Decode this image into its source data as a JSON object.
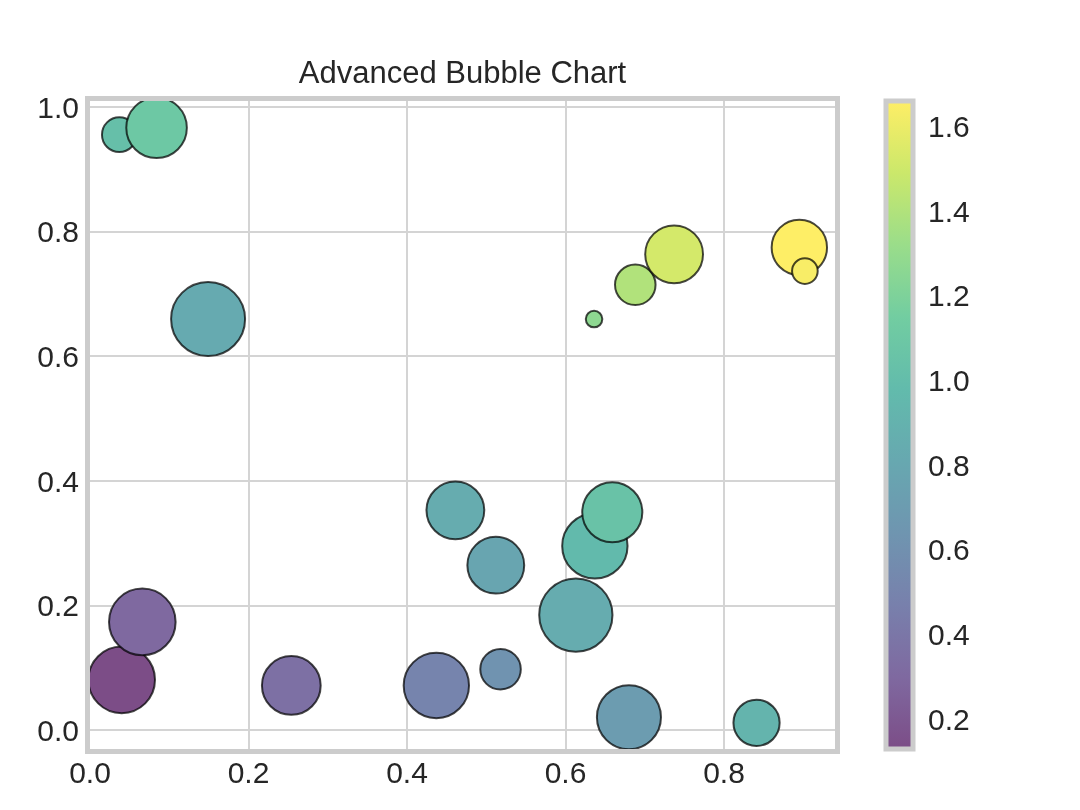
{
  "chart_data": {
    "type": "bubble",
    "title": "Advanced Bubble Chart",
    "x": [
      0.037,
      0.04,
      0.066,
      0.084,
      0.149,
      0.254,
      0.437,
      0.461,
      0.512,
      0.518,
      0.613,
      0.636,
      0.637,
      0.659,
      0.68,
      0.688,
      0.737,
      0.841,
      0.895,
      0.902
    ],
    "values": [
      0.956,
      0.081,
      0.174,
      0.967,
      0.66,
      0.072,
      0.072,
      0.353,
      0.265,
      0.098,
      0.185,
      0.66,
      0.296,
      0.35,
      0.021,
      0.715,
      0.764,
      0.012,
      0.775,
      0.737
    ],
    "sizes": [
      0.22,
      0.81,
      0.81,
      0.67,
      1,
      0.63,
      0.78,
      0.61,
      0.59,
      0.3,
      0.98,
      0.05,
      0.78,
      0.66,
      0.75,
      0.3,
      0.61,
      0.39,
      0.56,
      0.12
    ],
    "cvalues": [
      1.02,
      0.13,
      0.3,
      1.1,
      0.83,
      0.35,
      0.5,
      0.85,
      0.78,
      0.62,
      0.85,
      1.27,
      0.97,
      1.05,
      0.7,
      1.4,
      1.52,
      0.92,
      1.66,
      1.64
    ],
    "clim": [
      0.13,
      1.66
    ],
    "cticks": [
      0.2,
      0.4,
      0.6,
      0.8,
      {
        "value": 1.0,
        "label": "1.0"
      },
      1.2,
      1.4,
      1.6
    ],
    "xlim": [
      0.0,
      0.94
    ],
    "xticks": [
      {
        "value": 0.0,
        "label": "0.0"
      },
      0.2,
      0.4,
      0.6,
      0.8
    ],
    "ylim": [
      -0.03,
      1.01
    ],
    "yticks": [
      {
        "value": 0.0,
        "label": "0.0"
      },
      0.2,
      0.4,
      0.6,
      0.8,
      {
        "value": 1.0,
        "label": "1.0"
      }
    ],
    "grid": true,
    "marker": "circle"
  }
}
